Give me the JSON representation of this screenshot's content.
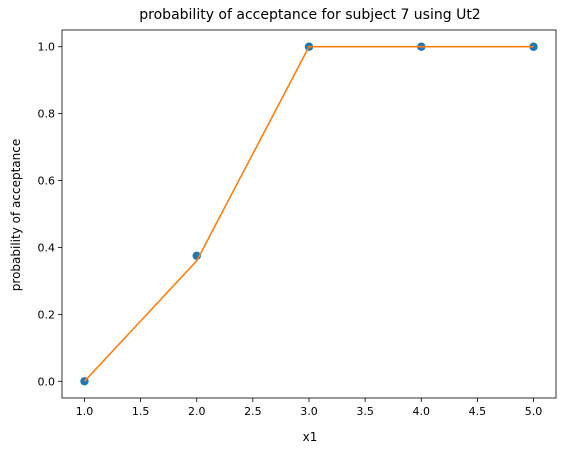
{
  "chart_data": {
    "type": "line",
    "title": "probability of acceptance for subject 7 using Ut2",
    "xlabel": "x1",
    "ylabel": "probability of acceptance",
    "xlim": [
      0.8,
      5.2
    ],
    "ylim": [
      -0.05,
      1.05
    ],
    "x_ticks": [
      "1.0",
      "1.5",
      "2.0",
      "2.5",
      "3.0",
      "3.5",
      "4.0",
      "4.5",
      "5.0"
    ],
    "y_ticks": [
      "0.0",
      "0.2",
      "0.4",
      "0.6",
      "0.8",
      "1.0"
    ],
    "grid": false,
    "series": [
      {
        "kind": "scatter",
        "color": "#1f77b4",
        "x": [
          1.0,
          2.0,
          3.0,
          4.0,
          5.0
        ],
        "y": [
          0.0,
          0.375,
          1.0,
          1.0,
          1.0
        ]
      },
      {
        "kind": "line",
        "color": "#ff7f0e",
        "x": [
          1.0,
          2.0,
          3.0,
          4.0,
          5.0
        ],
        "y": [
          0.0,
          0.36,
          1.0,
          1.0,
          1.0
        ]
      }
    ]
  }
}
